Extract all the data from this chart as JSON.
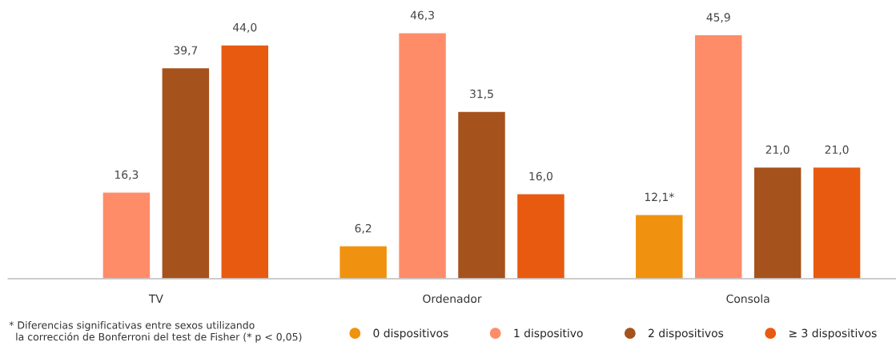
{
  "chart_data": {
    "type": "bar",
    "categories": [
      "TV",
      "Ordenador",
      "Consola"
    ],
    "series": [
      {
        "name": "0 dispositivos",
        "color": "#f0920f",
        "values": [
          null,
          6.2,
          12.1
        ],
        "value_labels": [
          null,
          "6,2",
          "12,1*"
        ]
      },
      {
        "name": "1 dispositivo",
        "color": "#ff8c69",
        "values": [
          16.3,
          46.3,
          45.9
        ],
        "value_labels": [
          "16,3",
          "46,3",
          "45,9"
        ]
      },
      {
        "name": "2 dispositivos",
        "color": "#a6521c",
        "values": [
          39.7,
          31.5,
          21.0
        ],
        "value_labels": [
          "39,7",
          "31,5",
          "21,0"
        ]
      },
      {
        "name": "≥ 3 dispositivos",
        "color": "#e85a10",
        "values": [
          44.0,
          16.0,
          21.0
        ],
        "value_labels": [
          "44,0",
          "16,0",
          "21,0"
        ]
      }
    ],
    "grid": false,
    "legend": "bottom right",
    "annotations": [
      "* Diferencias significativas entre sexos utilizando\n  la corrección de Bonferroni del test de Fisher (* p < 0,05)"
    ]
  }
}
